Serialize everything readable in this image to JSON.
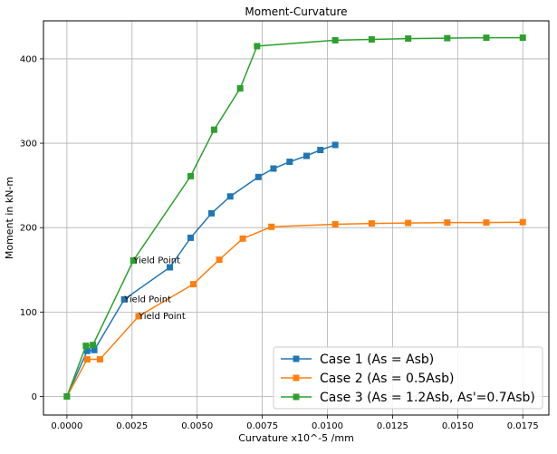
{
  "chart_data": {
    "type": "line",
    "title": "Moment-Curvature",
    "xlabel": "Curvature  x10^-5 /mm",
    "ylabel": "Moment  in kN-m",
    "xlim": [
      -0.0009,
      0.0185
    ],
    "ylim": [
      -22,
      445
    ],
    "grid": true,
    "legend_position": "lower right",
    "x_ticks": [
      0.0,
      0.0025,
      0.005,
      0.0075,
      0.01,
      0.0125,
      0.015,
      0.0175
    ],
    "x_tick_labels": [
      "0.0000",
      "0.0025",
      "0.0050",
      "0.0075",
      "0.0100",
      "0.0125",
      "0.0150",
      "0.0175"
    ],
    "y_ticks": [
      0,
      100,
      200,
      300,
      400
    ],
    "y_tick_labels": [
      "0",
      "100",
      "200",
      "300",
      "400"
    ],
    "series": [
      {
        "name": "Case 1 (As = Asb)",
        "color": "#1f77b4",
        "marker": "square",
        "x": [
          0.0,
          0.00078,
          0.00105,
          0.0022,
          0.00395,
          0.00475,
          0.00555,
          0.00627,
          0.00735,
          0.00793,
          0.00855,
          0.0092,
          0.00973,
          0.0103
        ],
        "y": [
          0,
          54,
          55,
          115,
          153,
          188,
          217,
          237,
          260,
          270,
          278,
          285,
          292,
          298
        ]
      },
      {
        "name": "Case 2 (As = 0.5Asb)",
        "color": "#ff7f0e",
        "marker": "square",
        "x": [
          0.0,
          0.00078,
          0.00127,
          0.00275,
          0.00485,
          0.00585,
          0.00675,
          0.00785,
          0.0103,
          0.0117,
          0.0131,
          0.0146,
          0.0161,
          0.0175
        ],
        "y": [
          0,
          44,
          44,
          95,
          133,
          162,
          187,
          201,
          204,
          205,
          205.5,
          206,
          206,
          206.5
        ]
      },
      {
        "name": "Case 3 (As = 1.2Asb, As'=0.7Asb)",
        "color": "#2ca02c",
        "marker": "square",
        "x": [
          0.0,
          0.00073,
          0.001,
          0.00255,
          0.00475,
          0.00565,
          0.00665,
          0.0073,
          0.0103,
          0.0117,
          0.0131,
          0.0146,
          0.0161,
          0.0175
        ],
        "y": [
          0,
          60,
          61,
          161,
          261,
          316,
          365,
          415,
          422,
          423,
          424,
          424.5,
          425,
          425
        ]
      }
    ],
    "annotations": [
      {
        "text": "Yield Point",
        "x": 0.00255,
        "y": 161
      },
      {
        "text": "Yield Point",
        "x": 0.0022,
        "y": 115
      },
      {
        "text": "Yield Point",
        "x": 0.00275,
        "y": 95
      }
    ]
  }
}
